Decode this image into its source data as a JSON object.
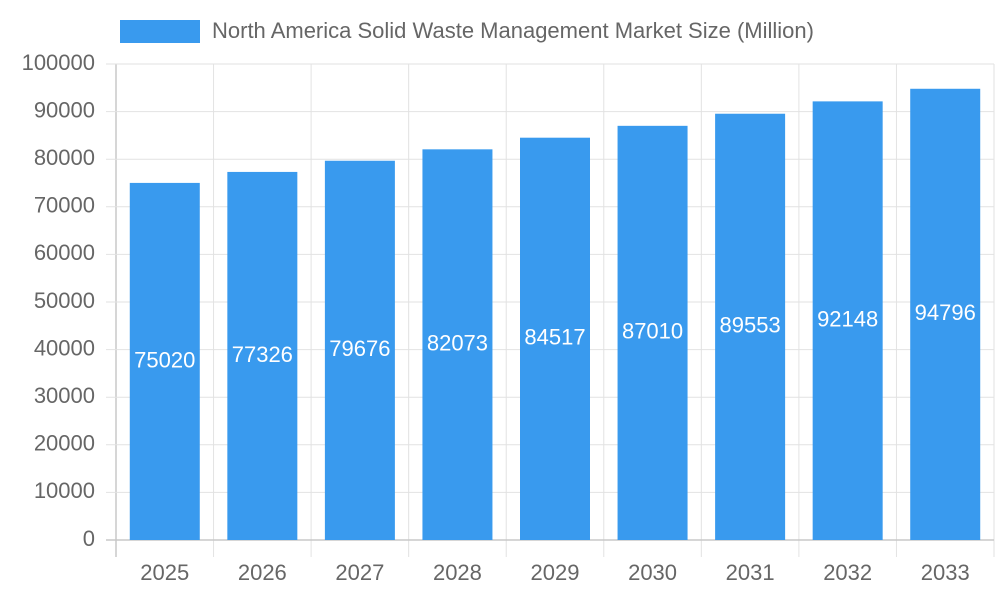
{
  "chart_data": {
    "type": "bar",
    "categories": [
      "2025",
      "2026",
      "2027",
      "2028",
      "2029",
      "2030",
      "2031",
      "2032",
      "2033"
    ],
    "series": [
      {
        "name": "North America Solid Waste Management Market Size (Million)",
        "color": "#399aee",
        "values": [
          75020,
          77326,
          79676,
          82073,
          84517,
          87010,
          89553,
          92148,
          94796
        ]
      }
    ],
    "ylim": [
      0,
      100000
    ],
    "yticks": [
      0,
      10000,
      20000,
      30000,
      40000,
      50000,
      60000,
      70000,
      80000,
      90000,
      100000
    ],
    "grid": true,
    "legend": "top"
  }
}
